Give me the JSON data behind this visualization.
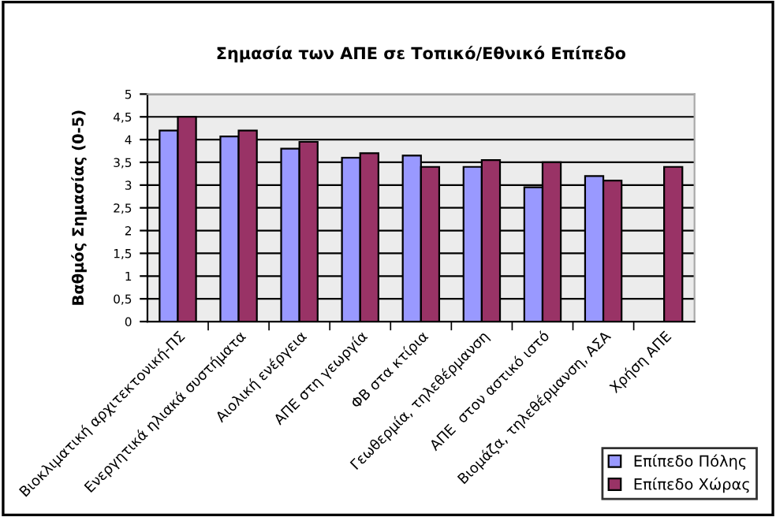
{
  "chart_data": {
    "type": "bar",
    "title": "Σημασία των ΑΠΕ σε Τοπικό/Εθνικό Επίπεδο",
    "ylabel": "Βαθμός Σημασίας (0-5)",
    "categories": [
      "Βιοκλιματική αρχιτεκτονική-ΠΣ",
      "Ενεργητικά ηλιακά συστήματα",
      "Αιολική ενέργεια",
      "ΑΠΕ στη γεωργία",
      "ΦΒ στα κτίρια",
      "Γεωθερμία, τηλεθέρμανση",
      "ΑΠΕ  στον αστικό ιστό",
      "Βιομάζα, τηλεθέρμανση, ΑΣΑ",
      "Χρήση ΑΠΕ"
    ],
    "series": [
      {
        "name": "Επίπεδο Πόλης",
        "color": "#9999ff",
        "values": [
          4.2,
          4.07,
          3.8,
          3.6,
          3.65,
          3.4,
          2.95,
          3.2,
          null
        ]
      },
      {
        "name": "Επίπεδο Χώρας",
        "color": "#993366",
        "values": [
          4.5,
          4.2,
          3.95,
          3.7,
          3.4,
          3.55,
          3.5,
          3.1,
          3.4
        ]
      }
    ],
    "ylim": [
      0,
      5
    ],
    "yticks": [
      0,
      {
        "value": 0.5,
        "label": "0,5"
      },
      1,
      {
        "value": 1.5,
        "label": "1,5"
      },
      2,
      {
        "value": 2.5,
        "label": "2,5"
      },
      3,
      {
        "value": 3.5,
        "label": "3,5"
      },
      4,
      {
        "value": 4.5,
        "label": "4,5"
      },
      5
    ],
    "grid": "y",
    "legend": "bottom right"
  }
}
